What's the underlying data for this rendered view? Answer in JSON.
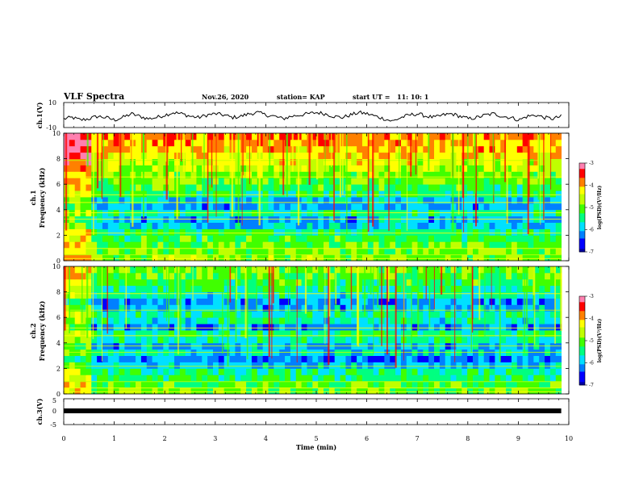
{
  "header": {
    "title": "VLF Spectra",
    "date": "Nov.26, 2020",
    "station": "station= KAP",
    "start_label": "start UT =",
    "start_time": "11: 10: 1"
  },
  "colors": {
    "scale": [
      "#0000a0",
      "#0000ff",
      "#0080ff",
      "#00e0ff",
      "#00ff80",
      "#40ff00",
      "#c0ff00",
      "#ffff00",
      "#ff8000",
      "#ff0000",
      "#ff80b0"
    ],
    "waveform": "#000000",
    "background": "#ffffff"
  },
  "chart_data": [
    {
      "type": "line",
      "name": "ch1-waveform",
      "ylabel": "ch.1(V)",
      "ylim": [
        -10,
        10
      ],
      "yticks": [
        "10",
        "-10"
      ],
      "x_end_min": 9.85,
      "values": [
        -3,
        -2,
        -4,
        -3,
        -1,
        -2,
        -4,
        -2,
        1,
        -1,
        -3,
        -2,
        0,
        2,
        1,
        -1,
        -2,
        0,
        1,
        0,
        -2,
        -1,
        1,
        2,
        0,
        -1,
        -3,
        -1,
        0,
        1,
        2,
        1,
        -1,
        -2,
        0,
        2,
        1,
        -1,
        -3,
        -5,
        -2,
        0,
        1,
        -1,
        -2,
        0,
        1,
        -1,
        -3,
        -2,
        0,
        1,
        -1,
        -2,
        -4,
        -1,
        0,
        -2,
        -3,
        -1
      ],
      "grid": false
    },
    {
      "type": "heatmap",
      "name": "ch1-spectrogram",
      "ylabel": "ch.1\nFrequency (kHz)",
      "ylim": [
        0,
        10
      ],
      "yticks": [
        "0",
        "2",
        "4",
        "6",
        "8",
        "10"
      ],
      "colorbar": {
        "range": [
          -7,
          -3
        ],
        "ticks": [
          "-3",
          "-4",
          "-5",
          "-6",
          "-7"
        ],
        "label": "log(PSD)(V²/Hz)"
      },
      "x_end_min": 9.85,
      "level_by_freq_khz": [
        [
          0.5,
          -4.8
        ],
        [
          1.0,
          -4.9
        ],
        [
          1.5,
          -5.0
        ],
        [
          2.0,
          -5.2
        ],
        [
          2.5,
          -5.3
        ],
        [
          3.0,
          -5.8
        ],
        [
          3.5,
          -6.0
        ],
        [
          4.0,
          -5.5
        ],
        [
          4.5,
          -6.0
        ],
        [
          5.0,
          -5.8
        ],
        [
          5.5,
          -5.3
        ],
        [
          6.0,
          -5.2
        ],
        [
          6.5,
          -5.0
        ],
        [
          7.0,
          -4.8
        ],
        [
          7.5,
          -4.6
        ],
        [
          8.0,
          -4.4
        ],
        [
          8.5,
          -4.2
        ],
        [
          9.0,
          -4.0
        ],
        [
          9.5,
          -3.9
        ],
        [
          10.0,
          -3.8
        ]
      ]
    },
    {
      "type": "heatmap",
      "name": "ch2-spectrogram",
      "ylabel": "ch.2\nFrequency (kHz)",
      "ylim": [
        0,
        10
      ],
      "yticks": [
        "0",
        "2",
        "4",
        "6",
        "8",
        "10"
      ],
      "colorbar": {
        "range": [
          -7,
          -3
        ],
        "ticks": [
          "-3",
          "-4",
          "-5",
          "-6",
          "-7"
        ],
        "label": "log(PSD)(V²/Hz)"
      },
      "x_end_min": 9.85,
      "level_by_freq_khz": [
        [
          0.5,
          -5.0
        ],
        [
          1.0,
          -5.1
        ],
        [
          1.5,
          -5.3
        ],
        [
          2.0,
          -5.5
        ],
        [
          2.5,
          -5.9
        ],
        [
          3.0,
          -6.2
        ],
        [
          3.5,
          -5.8
        ],
        [
          4.0,
          -6.0
        ],
        [
          4.5,
          -5.5
        ],
        [
          5.0,
          -5.4
        ],
        [
          5.5,
          -6.1
        ],
        [
          6.0,
          -5.6
        ],
        [
          6.5,
          -5.5
        ],
        [
          7.0,
          -6.0
        ],
        [
          7.5,
          -6.1
        ],
        [
          8.0,
          -5.6
        ],
        [
          8.5,
          -5.4
        ],
        [
          9.0,
          -5.2
        ],
        [
          9.5,
          -5.0
        ],
        [
          10.0,
          -4.9
        ]
      ]
    },
    {
      "type": "line",
      "name": "ch3-waveform",
      "ylabel": "ch.3(V)",
      "ylim": [
        -5,
        5
      ],
      "yticks": [
        "5",
        "0",
        "-5"
      ],
      "x_end_min": 9.85,
      "values": [
        0,
        0,
        0,
        0,
        0,
        0,
        0,
        0,
        0,
        0,
        0,
        0,
        0,
        0,
        0,
        0,
        0,
        0,
        0,
        0
      ],
      "grid": false
    }
  ],
  "xaxis": {
    "label": "Time (min)",
    "range": [
      0,
      10
    ],
    "ticks": [
      "0",
      "1",
      "2",
      "3",
      "4",
      "5",
      "6",
      "7",
      "8",
      "9",
      "10"
    ]
  }
}
